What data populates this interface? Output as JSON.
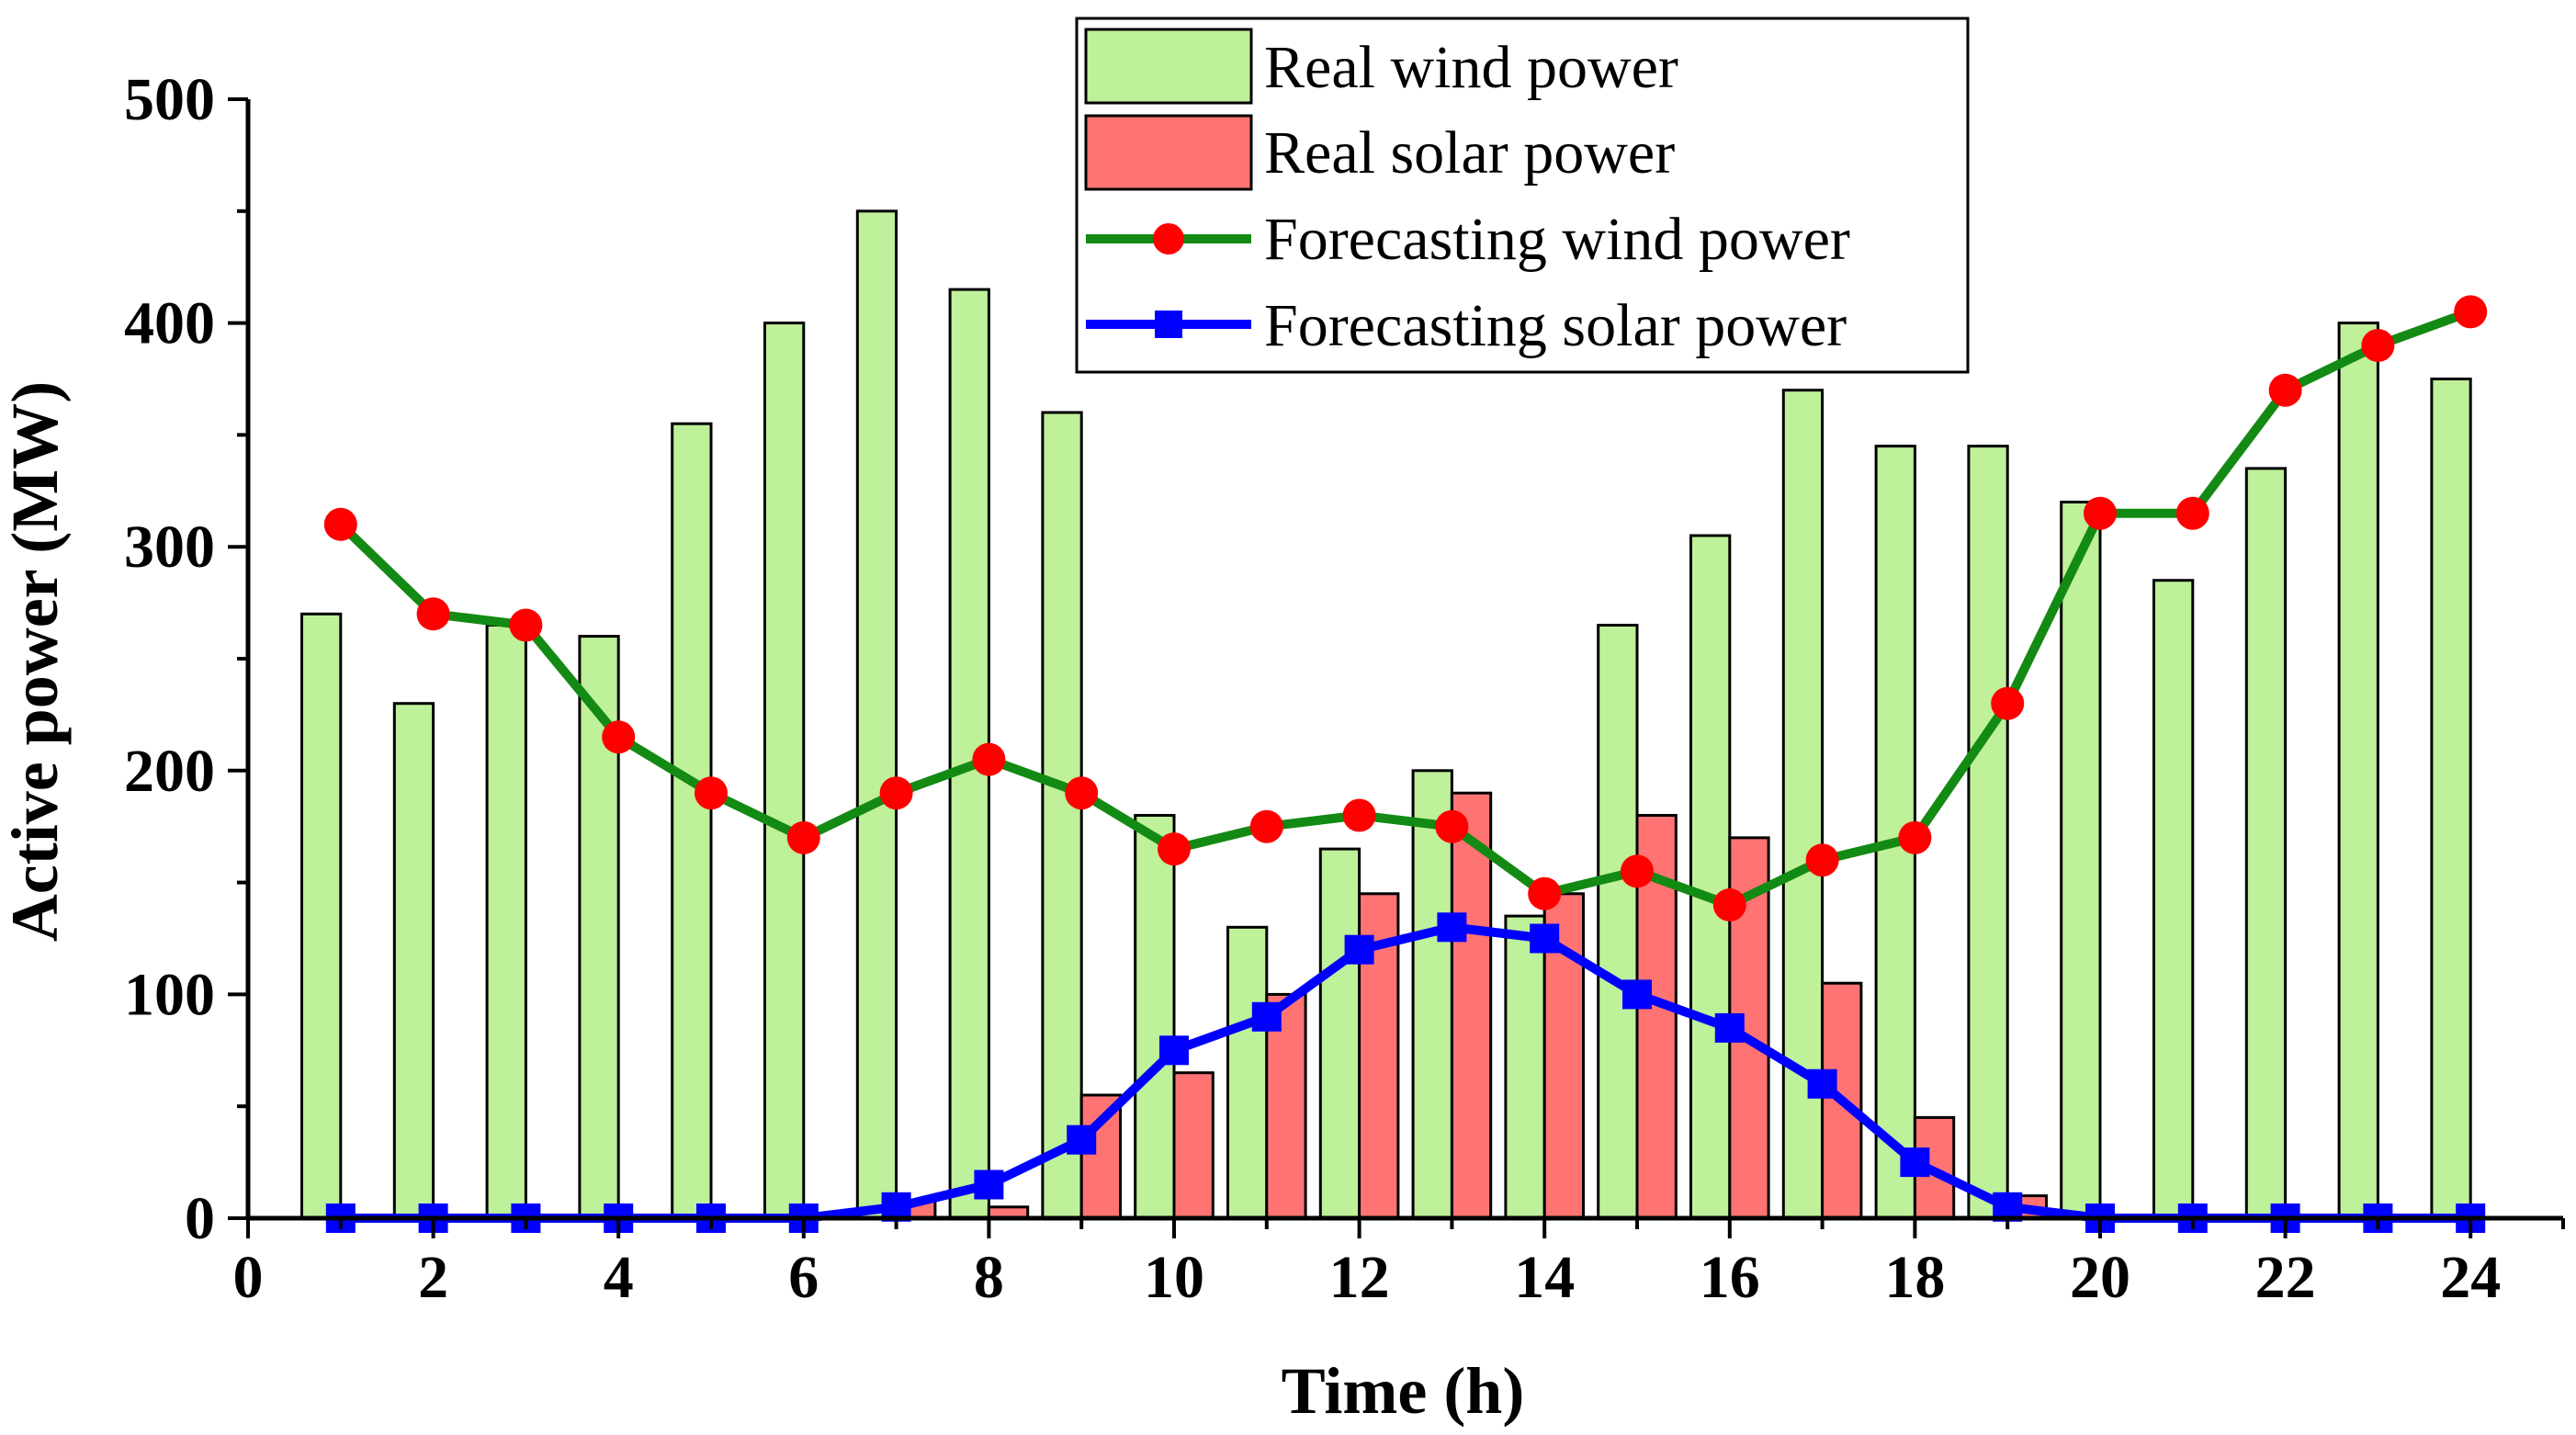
{
  "chart_data": {
    "type": "bar",
    "title": "",
    "xlabel": "Time (h)",
    "ylabel": "Active power (MW)",
    "xlim": [
      0,
      25
    ],
    "ylim": [
      0,
      500
    ],
    "xticks": [
      "0",
      "2",
      "4",
      "6",
      "8",
      "10",
      "12",
      "14",
      "16",
      "18",
      "20",
      "22",
      "24"
    ],
    "yticks": [
      "0",
      "100",
      "200",
      "300",
      "400",
      "500"
    ],
    "hours": [
      1,
      2,
      3,
      4,
      5,
      6,
      7,
      8,
      9,
      10,
      11,
      12,
      13,
      14,
      15,
      16,
      17,
      18,
      19,
      20,
      21,
      22,
      23,
      24
    ],
    "series": [
      {
        "name": "Real wind power",
        "kind": "bar",
        "color": "#bff09a",
        "values": [
          270,
          230,
          265,
          260,
          355,
          400,
          450,
          415,
          360,
          180,
          130,
          165,
          200,
          135,
          265,
          305,
          370,
          345,
          345,
          320,
          285,
          335,
          400,
          375
        ]
      },
      {
        "name": "Real solar power",
        "kind": "bar",
        "color": "#ff7373",
        "values": [
          0,
          0,
          0,
          0,
          0,
          0,
          8,
          5,
          55,
          65,
          100,
          145,
          190,
          145,
          180,
          170,
          105,
          45,
          10,
          0,
          0,
          0,
          0,
          0
        ]
      },
      {
        "name": "Forecasting wind power",
        "kind": "line",
        "color": "#138a13",
        "marker": "circle",
        "marker_color": "#ff0000",
        "values": [
          310,
          270,
          265,
          215,
          190,
          170,
          190,
          205,
          190,
          165,
          175,
          180,
          175,
          145,
          155,
          140,
          160,
          170,
          230,
          315,
          315,
          370,
          390,
          405
        ]
      },
      {
        "name": "Forecasting solar power",
        "kind": "line",
        "color": "#0000ff",
        "marker": "square",
        "marker_color": "#0000ff",
        "values": [
          0,
          0,
          0,
          0,
          0,
          0,
          5,
          15,
          35,
          75,
          90,
          120,
          130,
          125,
          100,
          85,
          60,
          25,
          5,
          0,
          0,
          0,
          0,
          0
        ]
      }
    ],
    "legend": {
      "position": "top-center",
      "frame": true
    }
  }
}
